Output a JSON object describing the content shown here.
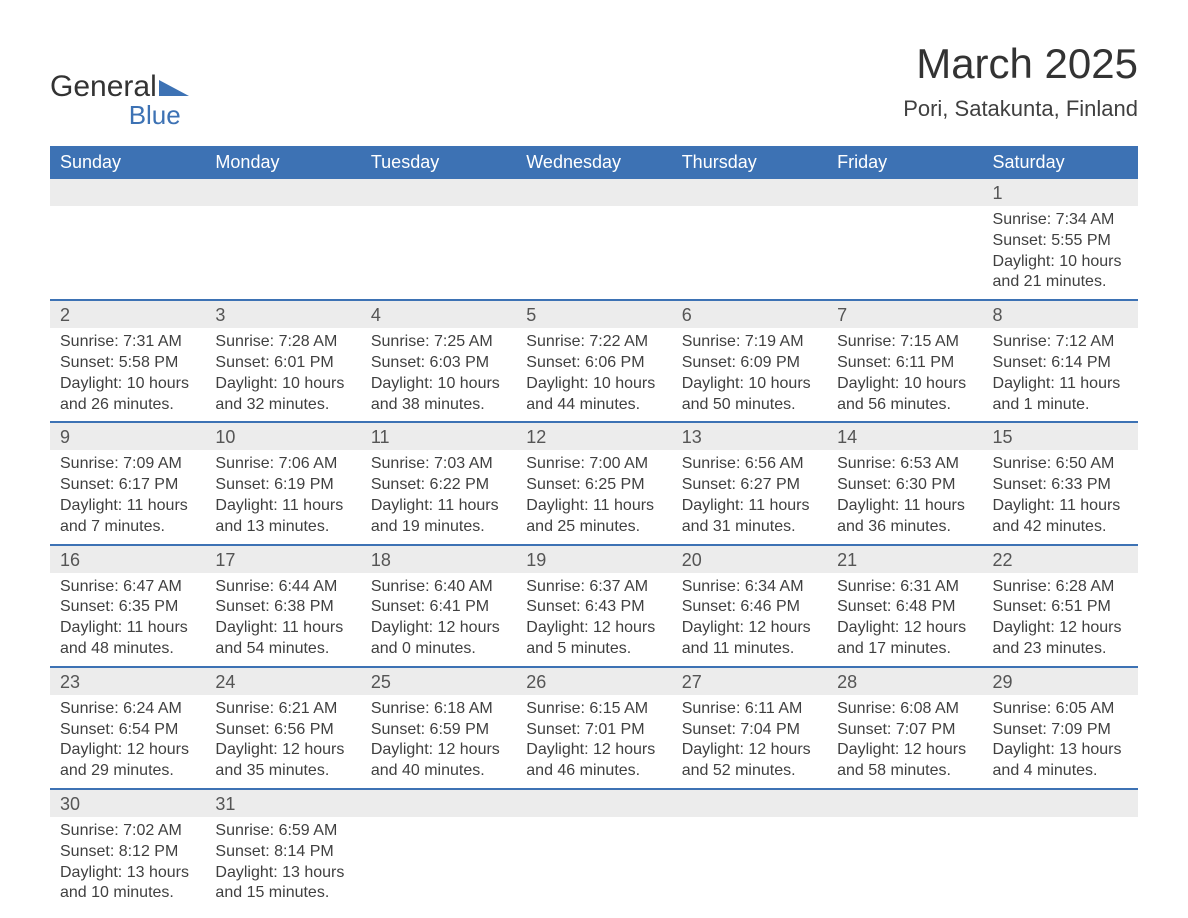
{
  "logo": {
    "text1": "General",
    "text2": "Blue"
  },
  "title": "March 2025",
  "location": "Pori, Satakunta, Finland",
  "dayHeaders": [
    "Sunday",
    "Monday",
    "Tuesday",
    "Wednesday",
    "Thursday",
    "Friday",
    "Saturday"
  ],
  "colors": {
    "headerBg": "#3d72b4",
    "headerText": "#ffffff",
    "dayNumBg": "#ececec",
    "rowBorder": "#3d72b4",
    "bodyText": "#404040"
  },
  "weeks": [
    [
      null,
      null,
      null,
      null,
      null,
      null,
      {
        "n": "1",
        "sr": "Sunrise: 7:34 AM",
        "ss": "Sunset: 5:55 PM",
        "d1": "Daylight: 10 hours",
        "d2": "and 21 minutes."
      }
    ],
    [
      {
        "n": "2",
        "sr": "Sunrise: 7:31 AM",
        "ss": "Sunset: 5:58 PM",
        "d1": "Daylight: 10 hours",
        "d2": "and 26 minutes."
      },
      {
        "n": "3",
        "sr": "Sunrise: 7:28 AM",
        "ss": "Sunset: 6:01 PM",
        "d1": "Daylight: 10 hours",
        "d2": "and 32 minutes."
      },
      {
        "n": "4",
        "sr": "Sunrise: 7:25 AM",
        "ss": "Sunset: 6:03 PM",
        "d1": "Daylight: 10 hours",
        "d2": "and 38 minutes."
      },
      {
        "n": "5",
        "sr": "Sunrise: 7:22 AM",
        "ss": "Sunset: 6:06 PM",
        "d1": "Daylight: 10 hours",
        "d2": "and 44 minutes."
      },
      {
        "n": "6",
        "sr": "Sunrise: 7:19 AM",
        "ss": "Sunset: 6:09 PM",
        "d1": "Daylight: 10 hours",
        "d2": "and 50 minutes."
      },
      {
        "n": "7",
        "sr": "Sunrise: 7:15 AM",
        "ss": "Sunset: 6:11 PM",
        "d1": "Daylight: 10 hours",
        "d2": "and 56 minutes."
      },
      {
        "n": "8",
        "sr": "Sunrise: 7:12 AM",
        "ss": "Sunset: 6:14 PM",
        "d1": "Daylight: 11 hours",
        "d2": "and 1 minute."
      }
    ],
    [
      {
        "n": "9",
        "sr": "Sunrise: 7:09 AM",
        "ss": "Sunset: 6:17 PM",
        "d1": "Daylight: 11 hours",
        "d2": "and 7 minutes."
      },
      {
        "n": "10",
        "sr": "Sunrise: 7:06 AM",
        "ss": "Sunset: 6:19 PM",
        "d1": "Daylight: 11 hours",
        "d2": "and 13 minutes."
      },
      {
        "n": "11",
        "sr": "Sunrise: 7:03 AM",
        "ss": "Sunset: 6:22 PM",
        "d1": "Daylight: 11 hours",
        "d2": "and 19 minutes."
      },
      {
        "n": "12",
        "sr": "Sunrise: 7:00 AM",
        "ss": "Sunset: 6:25 PM",
        "d1": "Daylight: 11 hours",
        "d2": "and 25 minutes."
      },
      {
        "n": "13",
        "sr": "Sunrise: 6:56 AM",
        "ss": "Sunset: 6:27 PM",
        "d1": "Daylight: 11 hours",
        "d2": "and 31 minutes."
      },
      {
        "n": "14",
        "sr": "Sunrise: 6:53 AM",
        "ss": "Sunset: 6:30 PM",
        "d1": "Daylight: 11 hours",
        "d2": "and 36 minutes."
      },
      {
        "n": "15",
        "sr": "Sunrise: 6:50 AM",
        "ss": "Sunset: 6:33 PM",
        "d1": "Daylight: 11 hours",
        "d2": "and 42 minutes."
      }
    ],
    [
      {
        "n": "16",
        "sr": "Sunrise: 6:47 AM",
        "ss": "Sunset: 6:35 PM",
        "d1": "Daylight: 11 hours",
        "d2": "and 48 minutes."
      },
      {
        "n": "17",
        "sr": "Sunrise: 6:44 AM",
        "ss": "Sunset: 6:38 PM",
        "d1": "Daylight: 11 hours",
        "d2": "and 54 minutes."
      },
      {
        "n": "18",
        "sr": "Sunrise: 6:40 AM",
        "ss": "Sunset: 6:41 PM",
        "d1": "Daylight: 12 hours",
        "d2": "and 0 minutes."
      },
      {
        "n": "19",
        "sr": "Sunrise: 6:37 AM",
        "ss": "Sunset: 6:43 PM",
        "d1": "Daylight: 12 hours",
        "d2": "and 5 minutes."
      },
      {
        "n": "20",
        "sr": "Sunrise: 6:34 AM",
        "ss": "Sunset: 6:46 PM",
        "d1": "Daylight: 12 hours",
        "d2": "and 11 minutes."
      },
      {
        "n": "21",
        "sr": "Sunrise: 6:31 AM",
        "ss": "Sunset: 6:48 PM",
        "d1": "Daylight: 12 hours",
        "d2": "and 17 minutes."
      },
      {
        "n": "22",
        "sr": "Sunrise: 6:28 AM",
        "ss": "Sunset: 6:51 PM",
        "d1": "Daylight: 12 hours",
        "d2": "and 23 minutes."
      }
    ],
    [
      {
        "n": "23",
        "sr": "Sunrise: 6:24 AM",
        "ss": "Sunset: 6:54 PM",
        "d1": "Daylight: 12 hours",
        "d2": "and 29 minutes."
      },
      {
        "n": "24",
        "sr": "Sunrise: 6:21 AM",
        "ss": "Sunset: 6:56 PM",
        "d1": "Daylight: 12 hours",
        "d2": "and 35 minutes."
      },
      {
        "n": "25",
        "sr": "Sunrise: 6:18 AM",
        "ss": "Sunset: 6:59 PM",
        "d1": "Daylight: 12 hours",
        "d2": "and 40 minutes."
      },
      {
        "n": "26",
        "sr": "Sunrise: 6:15 AM",
        "ss": "Sunset: 7:01 PM",
        "d1": "Daylight: 12 hours",
        "d2": "and 46 minutes."
      },
      {
        "n": "27",
        "sr": "Sunrise: 6:11 AM",
        "ss": "Sunset: 7:04 PM",
        "d1": "Daylight: 12 hours",
        "d2": "and 52 minutes."
      },
      {
        "n": "28",
        "sr": "Sunrise: 6:08 AM",
        "ss": "Sunset: 7:07 PM",
        "d1": "Daylight: 12 hours",
        "d2": "and 58 minutes."
      },
      {
        "n": "29",
        "sr": "Sunrise: 6:05 AM",
        "ss": "Sunset: 7:09 PM",
        "d1": "Daylight: 13 hours",
        "d2": "and 4 minutes."
      }
    ],
    [
      {
        "n": "30",
        "sr": "Sunrise: 7:02 AM",
        "ss": "Sunset: 8:12 PM",
        "d1": "Daylight: 13 hours",
        "d2": "and 10 minutes."
      },
      {
        "n": "31",
        "sr": "Sunrise: 6:59 AM",
        "ss": "Sunset: 8:14 PM",
        "d1": "Daylight: 13 hours",
        "d2": "and 15 minutes."
      },
      null,
      null,
      null,
      null,
      null
    ]
  ]
}
